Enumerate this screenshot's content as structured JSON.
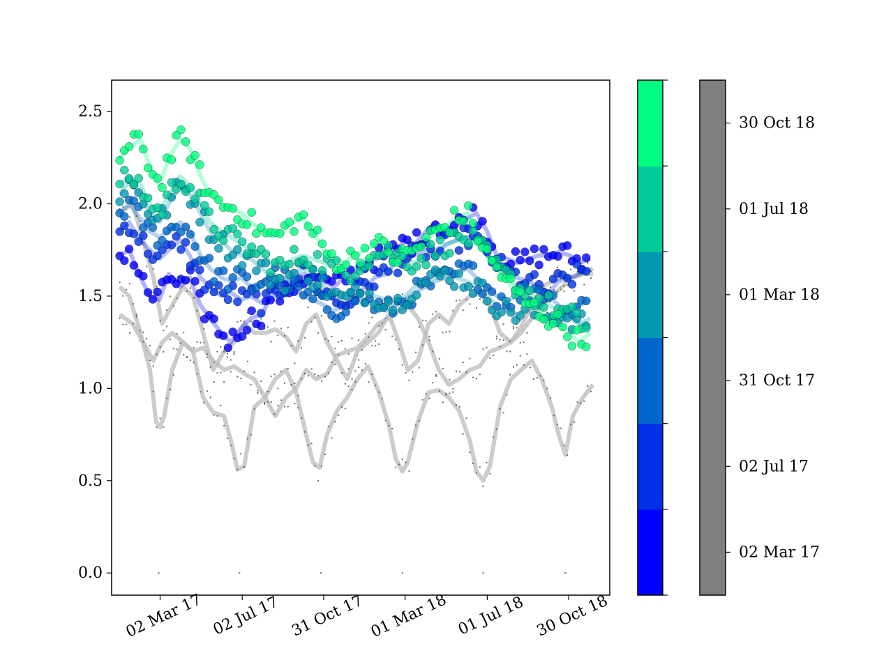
{
  "chart_data": {
    "type": "scatter",
    "title": "",
    "xlabel": "",
    "ylabel": "",
    "x_axis_type": "date",
    "xlim": [
      "2016-12-20",
      "2018-12-30"
    ],
    "ylim": [
      -0.12,
      2.67
    ],
    "y_ticks": [
      0.0,
      0.5,
      1.0,
      1.5,
      2.0,
      2.5
    ],
    "y_tick_labels": [
      "0.0",
      "0.5",
      "1.0",
      "1.5",
      "2.0",
      "2.5"
    ],
    "x_ticks": [
      "2017-03-02",
      "2017-07-02",
      "2017-10-31",
      "2018-03-01",
      "2018-07-01",
      "2018-10-30"
    ],
    "x_tick_labels": [
      "02 Mar 17",
      "02 Jul 17",
      "31 Oct 17",
      "01 Mar 18",
      "01 Jul 18",
      "30 Oct 18"
    ],
    "grid": false,
    "colors": {
      "grey_lines": "#bfbfbf",
      "grey_dots": "#666666",
      "colorbar_grey": "#808080",
      "colorbar_stops": [
        "#0000ff",
        "#0030e6",
        "#0066cc",
        "#0099b3",
        "#00cc99",
        "#00ff80"
      ]
    },
    "grey_series": [
      {
        "x": [
          "2017-01-01",
          "2017-01-15",
          "2017-02-01",
          "2017-02-15",
          "2017-02-24",
          "2017-03-02",
          "2017-03-08",
          "2017-03-20",
          "2017-04-05",
          "2017-04-20",
          "2017-05-05",
          "2017-05-20",
          "2017-06-05",
          "2017-06-15",
          "2017-06-25",
          "2017-07-05",
          "2017-07-20",
          "2017-08-05",
          "2017-08-20",
          "2017-09-05",
          "2017-09-20",
          "2017-10-05",
          "2017-10-15",
          "2017-10-25",
          "2017-11-05",
          "2017-11-20",
          "2017-12-05",
          "2017-12-20",
          "2018-01-05",
          "2018-01-20",
          "2018-02-05",
          "2018-02-15",
          "2018-02-25",
          "2018-03-05",
          "2018-03-20",
          "2018-04-05",
          "2018-04-20",
          "2018-05-05",
          "2018-05-20",
          "2018-06-05",
          "2018-06-15",
          "2018-06-25",
          "2018-07-05",
          "2018-07-20",
          "2018-08-05",
          "2018-08-20",
          "2018-09-05",
          "2018-09-20",
          "2018-10-05",
          "2018-10-15",
          "2018-10-25",
          "2018-11-05",
          "2018-11-20",
          "2018-12-05"
        ],
        "y": [
          1.55,
          1.5,
          1.3,
          1.1,
          0.82,
          0.79,
          0.85,
          1.1,
          1.25,
          1.2,
          0.95,
          0.87,
          0.85,
          0.72,
          0.56,
          0.58,
          0.9,
          0.95,
          1.05,
          1.1,
          0.98,
          0.75,
          0.6,
          0.57,
          0.75,
          0.88,
          0.95,
          1.05,
          1.12,
          0.99,
          0.8,
          0.62,
          0.55,
          0.6,
          0.82,
          0.98,
          0.99,
          0.95,
          0.88,
          0.72,
          0.55,
          0.5,
          0.58,
          0.9,
          1.05,
          1.1,
          1.15,
          1.05,
          0.9,
          0.75,
          0.64,
          0.85,
          0.95,
          1.02
        ]
      },
      {
        "x": [
          "2017-01-01",
          "2017-01-20",
          "2017-02-05",
          "2017-02-20",
          "2017-03-05",
          "2017-03-20",
          "2017-04-05",
          "2017-04-20",
          "2017-05-05",
          "2017-05-20",
          "2017-06-05",
          "2017-06-20",
          "2017-07-05",
          "2017-07-20",
          "2017-08-05",
          "2017-08-20",
          "2017-09-05",
          "2017-09-20",
          "2017-10-05",
          "2017-10-20",
          "2017-11-05",
          "2017-11-20",
          "2017-12-05",
          "2017-12-20",
          "2018-01-05",
          "2018-01-20",
          "2018-02-05",
          "2018-02-20",
          "2018-03-05",
          "2018-03-20",
          "2018-04-05",
          "2018-04-20",
          "2018-05-05",
          "2018-05-20",
          "2018-06-05",
          "2018-06-20",
          "2018-07-05",
          "2018-07-20",
          "2018-08-05",
          "2018-08-20",
          "2018-09-05",
          "2018-09-20",
          "2018-10-05",
          "2018-10-20",
          "2018-11-05",
          "2018-11-20",
          "2018-12-05"
        ],
        "y": [
          1.4,
          1.35,
          1.25,
          1.15,
          1.25,
          1.3,
          1.25,
          1.2,
          1.22,
          1.15,
          1.1,
          1.12,
          1.08,
          1.05,
          0.95,
          0.85,
          0.95,
          1.0,
          1.1,
          1.05,
          1.08,
          1.18,
          1.2,
          1.22,
          1.28,
          1.35,
          1.38,
          1.42,
          1.45,
          1.38,
          1.25,
          1.1,
          1.02,
          1.05,
          1.1,
          1.12,
          1.2,
          1.22,
          1.25,
          1.33,
          1.45,
          1.55,
          1.58,
          1.6,
          1.6,
          1.62,
          1.65
        ]
      },
      {
        "x": [
          "2017-01-01",
          "2017-01-20",
          "2017-02-05",
          "2017-02-20",
          "2017-03-05",
          "2017-03-20",
          "2017-04-05",
          "2017-04-20",
          "2017-05-05",
          "2017-05-20",
          "2017-06-05",
          "2017-06-20",
          "2017-07-05",
          "2017-07-20",
          "2017-08-05",
          "2017-08-20",
          "2017-09-05",
          "2017-09-20",
          "2017-10-05",
          "2017-10-20",
          "2017-11-05",
          "2017-11-20",
          "2017-12-05",
          "2017-12-20",
          "2018-01-05",
          "2018-01-20",
          "2018-02-05",
          "2018-02-20",
          "2018-03-05",
          "2018-03-20",
          "2018-04-05",
          "2018-04-20",
          "2018-05-05",
          "2018-05-20",
          "2018-06-05",
          "2018-06-20",
          "2018-07-05",
          "2018-07-20",
          "2018-08-05",
          "2018-08-20",
          "2018-09-05",
          "2018-09-20",
          "2018-10-05",
          "2018-10-20",
          "2018-11-05",
          "2018-11-20",
          "2018-12-05"
        ],
        "y": [
          1.95,
          2.0,
          1.8,
          1.6,
          1.35,
          1.45,
          1.55,
          1.5,
          1.3,
          1.1,
          1.2,
          1.25,
          1.35,
          1.3,
          1.3,
          1.32,
          1.28,
          1.2,
          1.35,
          1.4,
          1.25,
          1.15,
          1.05,
          1.2,
          1.25,
          1.3,
          1.4,
          1.25,
          1.1,
          1.15,
          1.35,
          1.4,
          1.35,
          1.45,
          1.5,
          1.52,
          1.45,
          1.3,
          1.25,
          1.3,
          1.38,
          1.45,
          1.5,
          1.55,
          1.6,
          1.62,
          1.62
        ]
      }
    ],
    "grey_dot_markers": {
      "x": [
        "2017-02-28",
        "2017-06-28",
        "2017-10-27",
        "2018-02-25",
        "2018-06-25",
        "2018-10-25"
      ],
      "y": [
        0.0,
        0.0,
        0.0,
        0.0,
        0.0,
        0.0
      ]
    },
    "colored_series": [
      {
        "color": "#0000ff",
        "x": [
          "2017-01-01",
          "2017-01-15",
          "2017-02-01",
          "2017-02-15",
          "2017-03-01",
          "2017-03-15",
          "2017-04-01",
          "2017-04-15",
          "2017-05-01",
          "2017-05-15",
          "2017-06-01",
          "2017-06-15",
          "2017-07-01",
          "2017-07-15",
          "2017-08-01",
          "2017-08-15",
          "2017-09-01",
          "2017-09-15",
          "2017-10-01",
          "2017-10-15",
          "2017-11-01",
          "2017-11-15",
          "2017-12-01",
          "2017-12-15",
          "2018-01-01",
          "2018-01-15",
          "2018-02-01",
          "2018-02-15",
          "2018-03-01",
          "2018-03-15",
          "2018-04-01",
          "2018-04-15",
          "2018-05-01",
          "2018-05-15",
          "2018-06-01",
          "2018-06-15",
          "2018-07-01",
          "2018-07-15",
          "2018-08-01",
          "2018-08-15",
          "2018-09-01",
          "2018-09-15",
          "2018-10-01",
          "2018-10-15",
          "2018-11-01",
          "2018-11-15",
          "2018-12-01"
        ],
        "y": [
          1.72,
          1.75,
          1.6,
          1.5,
          1.48,
          1.62,
          1.55,
          1.6,
          1.45,
          1.38,
          1.3,
          1.25,
          1.33,
          1.38,
          1.4,
          1.52,
          1.5,
          1.55,
          1.6,
          1.62,
          1.58,
          1.55,
          1.6,
          1.62,
          1.68,
          1.7,
          1.72,
          1.75,
          1.8,
          1.78,
          1.85,
          1.9,
          1.85,
          1.88,
          1.92,
          1.95,
          1.85,
          1.72,
          1.7,
          1.68,
          1.7,
          1.72,
          1.72,
          1.74,
          1.72,
          1.68,
          1.7
        ]
      },
      {
        "color": "#0030e6",
        "x": [
          "2017-01-01",
          "2017-01-15",
          "2017-02-01",
          "2017-02-15",
          "2017-03-01",
          "2017-03-15",
          "2017-04-01",
          "2017-04-15",
          "2017-05-01",
          "2017-05-15",
          "2017-06-01",
          "2017-06-15",
          "2017-07-01",
          "2017-07-15",
          "2017-08-01",
          "2017-08-15",
          "2017-09-01",
          "2017-09-15",
          "2017-10-01",
          "2017-10-15",
          "2017-11-01",
          "2017-11-15",
          "2017-12-01",
          "2017-12-15",
          "2018-01-01",
          "2018-01-15",
          "2018-02-01",
          "2018-02-15",
          "2018-03-01",
          "2018-03-15",
          "2018-04-01",
          "2018-04-15",
          "2018-05-01",
          "2018-05-15",
          "2018-06-01",
          "2018-06-15",
          "2018-07-01",
          "2018-07-15",
          "2018-08-01",
          "2018-08-15",
          "2018-09-01",
          "2018-09-15",
          "2018-10-01",
          "2018-10-15",
          "2018-11-01",
          "2018-11-15",
          "2018-12-01"
        ],
        "y": [
          1.85,
          1.9,
          1.8,
          1.75,
          1.7,
          1.75,
          1.8,
          1.72,
          1.6,
          1.55,
          1.5,
          1.52,
          1.48,
          1.5,
          1.46,
          1.48,
          1.55,
          1.6,
          1.62,
          1.58,
          1.52,
          1.48,
          1.45,
          1.5,
          1.55,
          1.6,
          1.62,
          1.68,
          1.7,
          1.72,
          1.75,
          1.72,
          1.78,
          1.8,
          1.82,
          1.8,
          1.72,
          1.68,
          1.62,
          1.6,
          1.58,
          1.55,
          1.52,
          1.58,
          1.6,
          1.62,
          1.65
        ]
      },
      {
        "color": "#0066cc",
        "x": [
          "2017-01-01",
          "2017-01-15",
          "2017-02-01",
          "2017-02-15",
          "2017-03-01",
          "2017-03-15",
          "2017-04-01",
          "2017-04-15",
          "2017-05-01",
          "2017-05-15",
          "2017-06-01",
          "2017-06-15",
          "2017-07-01",
          "2017-07-15",
          "2017-08-01",
          "2017-08-15",
          "2017-09-01",
          "2017-09-15",
          "2017-10-01",
          "2017-10-15",
          "2017-11-01",
          "2017-11-15",
          "2017-12-01",
          "2017-12-15",
          "2018-01-01",
          "2018-01-15",
          "2018-02-01",
          "2018-02-15",
          "2018-03-01",
          "2018-03-15",
          "2018-04-01",
          "2018-04-15",
          "2018-05-01",
          "2018-05-15",
          "2018-06-01",
          "2018-06-15",
          "2018-07-01",
          "2018-07-15",
          "2018-08-01",
          "2018-08-15",
          "2018-09-01",
          "2018-09-15",
          "2018-10-01",
          "2018-10-15",
          "2018-11-01",
          "2018-11-15",
          "2018-12-01"
        ],
        "y": [
          1.95,
          2.0,
          1.92,
          1.85,
          1.82,
          1.85,
          1.9,
          1.85,
          1.72,
          1.65,
          1.6,
          1.58,
          1.6,
          1.55,
          1.58,
          1.62,
          1.6,
          1.55,
          1.5,
          1.48,
          1.45,
          1.42,
          1.45,
          1.5,
          1.48,
          1.45,
          1.42,
          1.45,
          1.48,
          1.52,
          1.55,
          1.58,
          1.6,
          1.62,
          1.65,
          1.6,
          1.55,
          1.5,
          1.48,
          1.5,
          1.52,
          1.55,
          1.5,
          1.45,
          1.42,
          1.45,
          1.48
        ]
      },
      {
        "color": "#0099b3",
        "x": [
          "2017-01-01",
          "2017-01-15",
          "2017-02-01",
          "2017-02-15",
          "2017-03-01",
          "2017-03-15",
          "2017-04-01",
          "2017-04-15",
          "2017-05-01",
          "2017-05-15",
          "2017-06-01",
          "2017-06-15",
          "2017-07-01",
          "2017-07-15",
          "2017-08-01",
          "2017-08-15",
          "2017-09-01",
          "2017-09-15",
          "2017-10-01",
          "2017-10-15",
          "2017-11-01",
          "2017-11-15",
          "2017-12-01",
          "2017-12-15",
          "2018-01-01",
          "2018-01-15",
          "2018-02-01",
          "2018-02-15",
          "2018-03-01",
          "2018-03-15",
          "2018-04-01",
          "2018-04-15",
          "2018-05-01",
          "2018-05-15",
          "2018-06-01",
          "2018-06-15",
          "2018-07-01",
          "2018-07-15",
          "2018-08-01",
          "2018-08-15",
          "2018-09-01",
          "2018-09-15",
          "2018-10-01",
          "2018-10-15",
          "2018-11-01",
          "2018-11-15",
          "2018-12-01"
        ],
        "y": [
          2.05,
          2.12,
          2.05,
          1.95,
          1.9,
          2.0,
          2.1,
          2.05,
          1.95,
          1.85,
          1.8,
          1.75,
          1.72,
          1.7,
          1.65,
          1.6,
          1.58,
          1.62,
          1.65,
          1.6,
          1.55,
          1.5,
          1.48,
          1.5,
          1.52,
          1.5,
          1.48,
          1.45,
          1.5,
          1.55,
          1.58,
          1.6,
          1.62,
          1.6,
          1.58,
          1.55,
          1.5,
          1.45,
          1.42,
          1.4,
          1.42,
          1.4,
          1.38,
          1.4,
          1.38,
          1.35,
          1.38
        ]
      },
      {
        "color": "#00cc99",
        "x": [
          "2017-01-01",
          "2017-01-15",
          "2017-02-01",
          "2017-02-15",
          "2017-03-01",
          "2017-03-15",
          "2017-04-01",
          "2017-04-15",
          "2017-05-01",
          "2017-05-15",
          "2017-06-01",
          "2017-06-15",
          "2017-07-01",
          "2017-07-15",
          "2017-08-01",
          "2017-08-15",
          "2017-09-01",
          "2017-09-15",
          "2017-10-01",
          "2017-10-15",
          "2017-11-01",
          "2017-11-15",
          "2017-12-01",
          "2017-12-15",
          "2018-01-01",
          "2018-01-15",
          "2018-02-01",
          "2018-02-15",
          "2018-03-01",
          "2018-03-15",
          "2018-04-01",
          "2018-04-15",
          "2018-05-01",
          "2018-05-15",
          "2018-06-01",
          "2018-06-15",
          "2018-07-01",
          "2018-07-15",
          "2018-08-01",
          "2018-08-15",
          "2018-09-01",
          "2018-09-15",
          "2018-10-01",
          "2018-10-15",
          "2018-11-01",
          "2018-11-15",
          "2018-12-01"
        ],
        "y": [
          2.1,
          2.15,
          2.1,
          2.0,
          1.95,
          2.05,
          2.15,
          2.1,
          2.0,
          1.9,
          1.85,
          1.82,
          1.78,
          1.75,
          1.72,
          1.68,
          1.65,
          1.7,
          1.72,
          1.7,
          1.68,
          1.65,
          1.62,
          1.65,
          1.7,
          1.72,
          1.75,
          1.72,
          1.7,
          1.68,
          1.72,
          1.75,
          1.78,
          1.8,
          1.82,
          1.78,
          1.72,
          1.65,
          1.6,
          1.55,
          1.52,
          1.48,
          1.45,
          1.42,
          1.4,
          1.35,
          1.32
        ]
      },
      {
        "color": "#00ff80",
        "x": [
          "2017-01-01",
          "2017-01-15",
          "2017-02-01",
          "2017-02-15",
          "2017-03-01",
          "2017-03-15",
          "2017-04-01",
          "2017-04-15",
          "2017-05-01",
          "2017-05-15",
          "2017-06-01",
          "2017-06-15",
          "2017-07-01",
          "2017-07-15",
          "2017-08-01",
          "2017-08-15",
          "2017-09-01",
          "2017-09-15",
          "2017-10-01",
          "2017-10-15",
          "2017-11-01",
          "2017-11-15",
          "2017-12-01",
          "2017-12-15",
          "2018-01-01",
          "2018-01-15",
          "2018-02-01",
          "2018-02-15",
          "2018-03-01",
          "2018-03-15",
          "2018-04-01",
          "2018-04-15",
          "2018-05-01",
          "2018-05-15",
          "2018-06-01",
          "2018-06-15",
          "2018-07-01",
          "2018-07-15",
          "2018-08-01",
          "2018-08-15",
          "2018-09-01",
          "2018-09-15",
          "2018-10-01",
          "2018-10-15",
          "2018-11-01",
          "2018-11-15",
          "2018-12-01"
        ],
        "y": [
          2.25,
          2.3,
          2.35,
          2.2,
          2.1,
          2.25,
          2.35,
          2.3,
          2.15,
          2.05,
          2.0,
          1.98,
          1.95,
          1.9,
          1.85,
          1.82,
          1.85,
          1.9,
          1.92,
          1.85,
          1.75,
          1.7,
          1.68,
          1.72,
          1.75,
          1.78,
          1.75,
          1.7,
          1.72,
          1.75,
          1.8,
          1.85,
          1.88,
          1.92,
          1.95,
          1.85,
          1.72,
          1.65,
          1.58,
          1.5,
          1.45,
          1.42,
          1.38,
          1.35,
          1.3,
          1.25,
          1.3
        ]
      }
    ],
    "colorbar_1": {
      "colors": [
        "#0000ff",
        "#0030e6",
        "#0066cc",
        "#0099b3",
        "#00cc99",
        "#00ff80"
      ],
      "tick_labels": []
    },
    "colorbar_2": {
      "color": "#808080",
      "tick_labels": [
        "02 Mar 17",
        "02 Jul 17",
        "31 Oct 17",
        "01 Mar 18",
        "01 Jul 18",
        "30 Oct 18"
      ]
    }
  }
}
